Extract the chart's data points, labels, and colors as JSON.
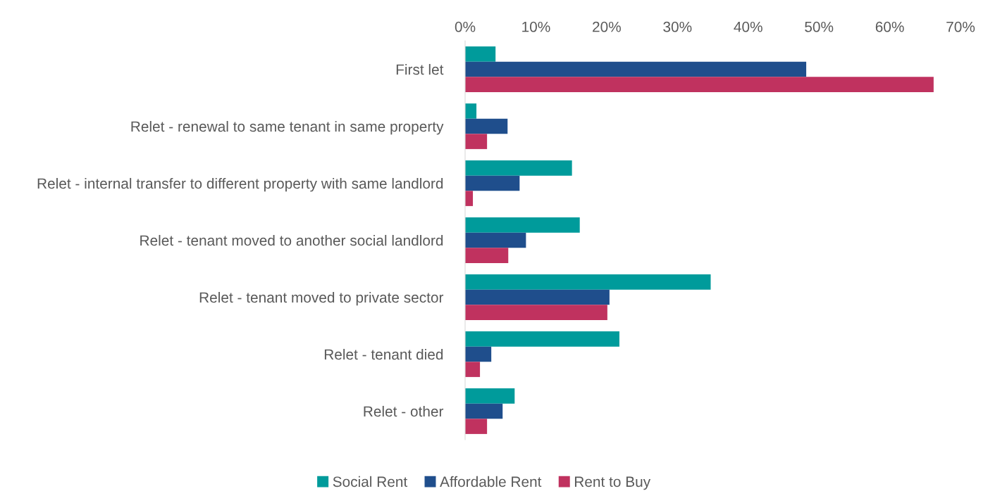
{
  "chart_data": {
    "type": "bar",
    "orientation": "horizontal",
    "categories": [
      "First let",
      "Relet - renewal to same tenant in same property",
      "Relet - internal transfer to different property with same landlord",
      "Relet - tenant moved to another social landlord",
      "Relet - tenant moved to private sector",
      "Relet - tenant died",
      "Relet - other"
    ],
    "series": [
      {
        "name": "Social Rent",
        "color": "#009b9b",
        "values": [
          4.3,
          1.6,
          15.1,
          16.2,
          34.7,
          21.8,
          7.0
        ]
      },
      {
        "name": "Affordable Rent",
        "color": "#1f4e8c",
        "values": [
          48.2,
          6.0,
          7.7,
          8.6,
          20.4,
          3.7,
          5.3
        ]
      },
      {
        "name": "Rent to Buy",
        "color": "#c0325f",
        "values": [
          66.2,
          3.1,
          1.1,
          6.1,
          20.1,
          2.1,
          3.1
        ]
      }
    ],
    "xlim": [
      0,
      70
    ],
    "xticks": [
      {
        "value": 0,
        "label": "0%"
      },
      {
        "value": 10,
        "label": "10%"
      },
      {
        "value": 20,
        "label": "20%"
      },
      {
        "value": 30,
        "label": "30%"
      },
      {
        "value": 40,
        "label": "40%"
      },
      {
        "value": 50,
        "label": "50%"
      },
      {
        "value": 60,
        "label": "60%"
      },
      {
        "value": 70,
        "label": "70%"
      }
    ],
    "grid": false,
    "legend": "bottom"
  }
}
